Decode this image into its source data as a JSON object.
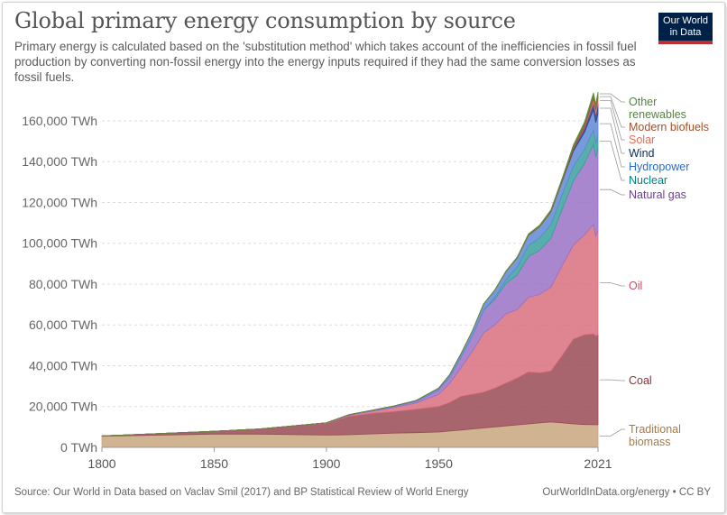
{
  "header": {
    "title": "Global primary energy consumption by source",
    "subtitle": "Primary energy is calculated based on the 'substitution method' which takes account of the inefficiencies in fossil fuel production by converting non-fossil energy into the energy inputs required if they had the same conversion losses as fossil fuels."
  },
  "logo": {
    "line1": "Our World",
    "line2": "in Data"
  },
  "footer": {
    "source": "Source: Our World in Data based on Vaclav Smil (2017) and BP Statistical Review of World Energy",
    "link": "OurWorldInData.org/energy • CC BY"
  },
  "chart_data": {
    "type": "area",
    "stacked": true,
    "x": [
      1800,
      1850,
      1870,
      1900,
      1910,
      1920,
      1930,
      1940,
      1950,
      1955,
      1960,
      1965,
      1970,
      1975,
      1980,
      1985,
      1990,
      1995,
      2000,
      2005,
      2010,
      2015,
      2019,
      2020,
      2021
    ],
    "x_ticks": [
      "1800",
      "1850",
      "1900",
      "1950",
      "2021"
    ],
    "y_ticks": [
      "0 TWh",
      "20,000 TWh",
      "40,000 TWh",
      "60,000 TWh",
      "80,000 TWh",
      "100,000 TWh",
      "120,000 TWh",
      "140,000 TWh",
      "160,000 TWh"
    ],
    "ylim": [
      0,
      175000
    ],
    "xlim": [
      1800,
      2021
    ],
    "grid": true,
    "legend_position": "right, labels at series ends",
    "series": [
      {
        "name": "Traditional biomass",
        "color": "#c8a77f",
        "labelColor": "#a27b4a",
        "values": [
          5500,
          6500,
          6500,
          6000,
          6200,
          6600,
          7000,
          7200,
          7500,
          8000,
          8500,
          9000,
          9500,
          10000,
          10500,
          11000,
          11500,
          12000,
          12400,
          12000,
          11500,
          11200,
          11100,
          11100,
          11100
        ]
      },
      {
        "name": "Coal",
        "color": "#9a4a55",
        "labelColor": "#883039",
        "values": [
          100,
          1400,
          2500,
          5700,
          9000,
          10000,
          10500,
          11500,
          12500,
          14000,
          16500,
          17000,
          17500,
          19000,
          21000,
          23000,
          25500,
          24500,
          25000,
          33000,
          41500,
          44000,
          44500,
          43500,
          44000
        ]
      },
      {
        "name": "Oil",
        "color": "#d96e7e",
        "labelColor": "#c15065",
        "values": [
          0,
          0,
          0,
          200,
          500,
          1000,
          2000,
          3000,
          6000,
          9500,
          14000,
          21000,
          29000,
          31000,
          34000,
          33500,
          36500,
          38500,
          41000,
          44000,
          46000,
          49000,
          53600,
          49000,
          51000
        ]
      },
      {
        "name": "Natural gas",
        "color": "#9a72c6",
        "labelColor": "#6d3e91",
        "values": [
          0,
          0,
          0,
          100,
          200,
          300,
          500,
          800,
          2100,
          3000,
          5200,
          7500,
          11000,
          12500,
          14800,
          17000,
          20000,
          21500,
          24000,
          27500,
          31500,
          35000,
          39300,
          38500,
          40400
        ]
      },
      {
        "name": "Nuclear",
        "color": "#3aa09b",
        "labelColor": "#00847e",
        "values": [
          0,
          0,
          0,
          0,
          0,
          0,
          0,
          0,
          0,
          0,
          0,
          50,
          200,
          1000,
          1900,
          3800,
          5400,
          6100,
          6800,
          7200,
          7100,
          6800,
          7200,
          6900,
          7000
        ]
      },
      {
        "name": "Hydropower",
        "color": "#5f8ad4",
        "labelColor": "#2c6bc4",
        "values": [
          0,
          0,
          0,
          0,
          100,
          200,
          300,
          500,
          900,
          1200,
          1800,
          2400,
          3000,
          3500,
          4000,
          4500,
          5000,
          5500,
          6000,
          6500,
          7500,
          8500,
          9900,
          10200,
          10200
        ]
      },
      {
        "name": "Wind",
        "color": "#2d3f85",
        "labelColor": "#0b2e6b",
        "values": [
          0,
          0,
          0,
          0,
          0,
          0,
          0,
          0,
          0,
          0,
          0,
          0,
          0,
          0,
          0,
          0,
          0,
          0,
          100,
          300,
          900,
          2200,
          3500,
          4000,
          4900
        ]
      },
      {
        "name": "Solar",
        "color": "#e56f6f",
        "labelColor": "#e56e5a",
        "values": [
          0,
          0,
          0,
          0,
          0,
          0,
          0,
          0,
          0,
          0,
          0,
          0,
          0,
          0,
          0,
          0,
          0,
          0,
          0,
          0,
          100,
          600,
          1800,
          2200,
          2700
        ]
      },
      {
        "name": "Modern biofuels",
        "color": "#a0522d",
        "labelColor": "#a0522d",
        "values": [
          0,
          0,
          0,
          0,
          0,
          0,
          0,
          0,
          0,
          0,
          0,
          0,
          0,
          0,
          100,
          200,
          300,
          300,
          400,
          600,
          1200,
          1200,
          1200,
          1100,
          1100
        ]
      },
      {
        "name": "Other renewables",
        "color": "#5e8c3a",
        "labelColor": "#578145",
        "values": [
          0,
          0,
          0,
          0,
          0,
          0,
          0,
          0,
          0,
          0,
          0,
          0,
          0,
          100,
          200,
          300,
          400,
          500,
          600,
          700,
          800,
          1000,
          1600,
          1600,
          1700
        ]
      }
    ],
    "legend_labels": [
      "Other",
      "renewables",
      "Modern biofuels",
      "Solar",
      "Wind",
      "Hydropower",
      "Nuclear",
      "Natural gas",
      "Oil",
      "Coal",
      "Traditional",
      "biomass"
    ]
  }
}
